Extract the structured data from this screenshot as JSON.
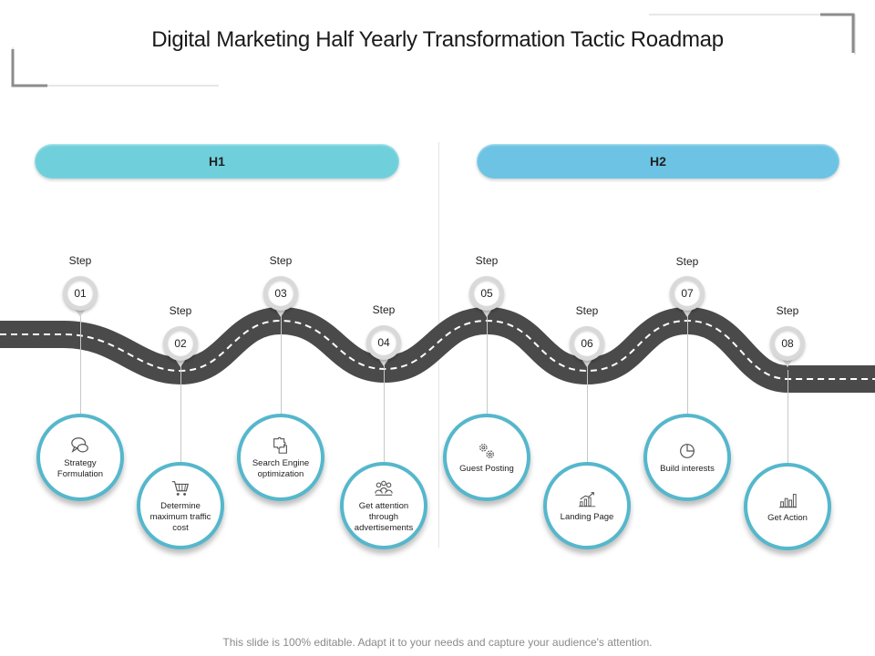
{
  "title": "Digital Marketing Half Yearly Transformation Tactic Roadmap",
  "footer": "This slide is 100% editable. Adapt it to your needs and capture your audience's attention.",
  "phases": [
    {
      "label": "H1",
      "color": "#6fd0dc"
    },
    {
      "label": "H2",
      "color": "#6cc3e3"
    }
  ],
  "accent_color": "#55b7cc",
  "road_color": "#4a4a4a",
  "steps": [
    {
      "step_label": "Step",
      "number": "01",
      "text": "Strategy Formulation",
      "icon": "chat-bubbles-icon"
    },
    {
      "step_label": "Step",
      "number": "02",
      "text": "Determine maximum traffic cost",
      "icon": "shopping-cart-icon"
    },
    {
      "step_label": "Step",
      "number": "03",
      "text": "Search Engine optimization",
      "icon": "puzzle-icon"
    },
    {
      "step_label": "Step",
      "number": "04",
      "text": "Get attention through advertisements",
      "icon": "people-group-icon"
    },
    {
      "step_label": "Step",
      "number": "05",
      "text": "Guest Posting",
      "icon": "gears-icon"
    },
    {
      "step_label": "Step",
      "number": "06",
      "text": "Landing Page",
      "icon": "growth-chart-icon"
    },
    {
      "step_label": "Step",
      "number": "07",
      "text": "Build interests",
      "icon": "pie-chart-icon"
    },
    {
      "step_label": "Step",
      "number": "08",
      "text": "Get Action",
      "icon": "bar-chart-icon"
    }
  ]
}
